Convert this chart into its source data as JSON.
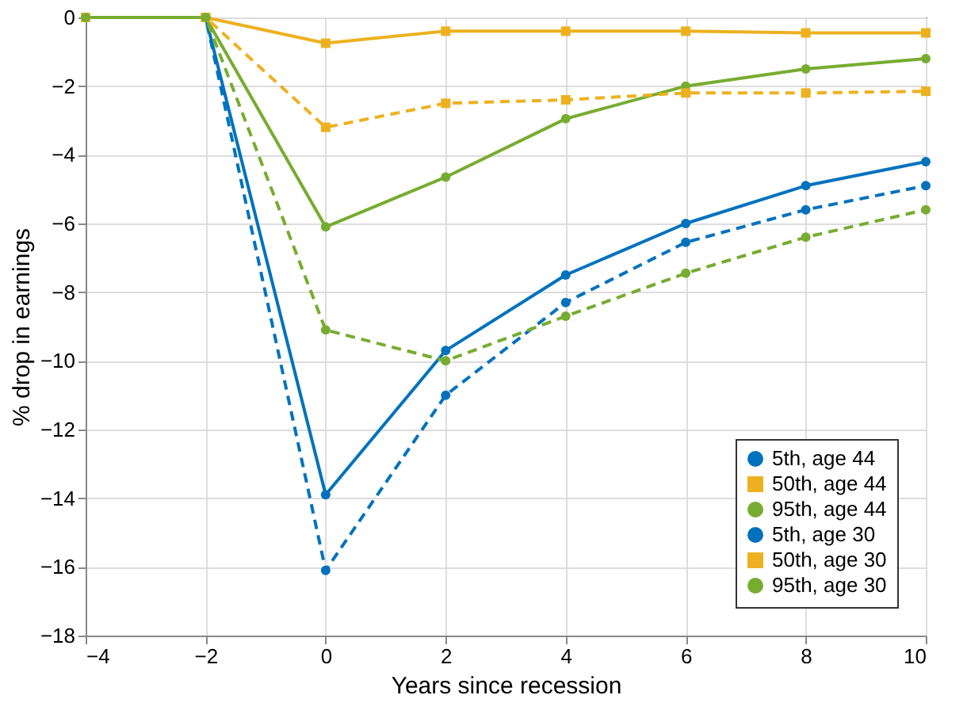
{
  "chart_data": {
    "type": "line",
    "xlabel": "Years since recession",
    "ylabel": "% drop in earnings",
    "x": [
      -4,
      -2,
      0,
      2,
      4,
      6,
      8,
      10
    ],
    "series": [
      {
        "name": "5th, age 44",
        "color": "#0072bd",
        "marker": "circle",
        "line_style": "solid",
        "values": [
          0,
          0,
          -13.9,
          -9.7,
          -7.5,
          -6.0,
          -4.9,
          -4.2
        ]
      },
      {
        "name": "50th, age 44",
        "color": "#edb120",
        "marker": "square",
        "line_style": "solid",
        "values": [
          0,
          0,
          -0.75,
          -0.4,
          -0.4,
          -0.4,
          -0.45,
          -0.45
        ]
      },
      {
        "name": "95th, age 44",
        "color": "#77ac30",
        "marker": "circle",
        "line_style": "solid",
        "values": [
          0,
          0,
          -6.1,
          -4.65,
          -2.95,
          -2.0,
          -1.5,
          -1.2
        ]
      },
      {
        "name": "5th, age 30",
        "color": "#0072bd",
        "marker": "circle",
        "line_style": "dashed",
        "values": [
          0,
          0,
          -16.1,
          -11.0,
          -8.3,
          -6.55,
          -5.6,
          -4.9
        ]
      },
      {
        "name": "50th, age 30",
        "color": "#edb120",
        "marker": "square",
        "line_style": "dashed",
        "values": [
          0,
          0,
          -3.2,
          -2.5,
          -2.4,
          -2.2,
          -2.2,
          -2.15
        ]
      },
      {
        "name": "95th, age 30",
        "color": "#77ac30",
        "marker": "circle",
        "line_style": "dashed",
        "values": [
          0,
          0,
          -9.1,
          -10.0,
          -8.7,
          -7.45,
          -6.4,
          -5.6
        ]
      }
    ],
    "xlim": [
      -4,
      10
    ],
    "xticks": [
      -4,
      -2,
      0,
      2,
      4,
      6,
      8,
      10
    ],
    "ylim": [
      -18,
      0
    ],
    "yticks": [
      -18,
      -16,
      -14,
      -12,
      -10,
      -8,
      -6,
      -4,
      -2,
      0
    ],
    "grid": true,
    "legend": "bottom right"
  }
}
